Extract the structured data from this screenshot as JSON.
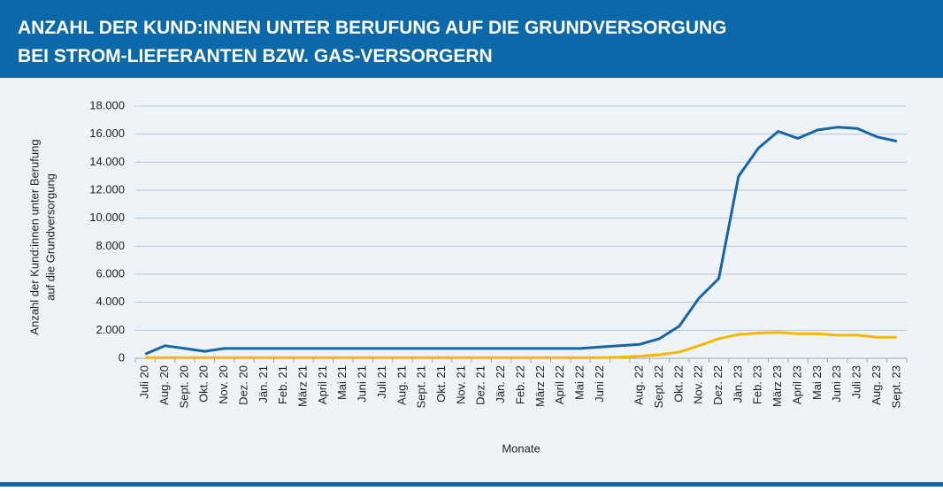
{
  "chart_data": {
    "type": "line",
    "title": [
      "ANZAHL DER KUND:INNEN UNTER BERUFUNG AUF DIE GRUNDVERSORGUNG",
      "BEI STROM-LIEFERANTEN BZW. GAS-VERSORGERN"
    ],
    "y_label": [
      "Anzahl der Kund:innen unter Berufung",
      "auf die Grundversorgung"
    ],
    "x_label": "Monate",
    "categories": [
      "Juli 20",
      "Aug. 20",
      "Sept. 20",
      "Okt. 20",
      "Nov. 20",
      "Dez. 20",
      "Jän. 21",
      "Feb. 21",
      "März 21",
      "April 21",
      "Mai 21",
      "Juni 21",
      "Juli 21",
      "Aug. 21",
      "Sept. 21",
      "Okt. 21",
      "Nov. 21",
      "Dez. 21",
      "Jän. 22",
      "Feb. 22",
      "März 22",
      "April 22",
      "Mai 22",
      "Juni 22",
      null,
      "Aug. 22",
      "Sept. 22",
      "Okt. 22",
      "Nov. 22",
      "Dez. 22",
      "Jän. 23",
      "Feb. 23",
      "März 23",
      "April 23",
      "Mai 23",
      "Juni 23",
      "Juli 23",
      "Aug. 23",
      "Sept. 23"
    ],
    "series": [
      {
        "color": "#1565a7",
        "values": [
          300,
          900,
          700,
          500,
          700,
          700,
          700,
          700,
          700,
          700,
          700,
          700,
          700,
          700,
          700,
          700,
          700,
          700,
          700,
          700,
          700,
          700,
          700,
          800,
          900,
          1000,
          1400,
          2300,
          4300,
          5700,
          13000,
          15000,
          16200,
          15700,
          16300,
          16500,
          16400,
          15800,
          15500
        ]
      },
      {
        "color": "#f5b800",
        "values": [
          50,
          50,
          50,
          50,
          50,
          50,
          50,
          50,
          50,
          50,
          50,
          50,
          50,
          50,
          50,
          50,
          50,
          50,
          50,
          50,
          50,
          50,
          50,
          50,
          80,
          150,
          250,
          450,
          900,
          1400,
          1700,
          1800,
          1850,
          1750,
          1750,
          1650,
          1650,
          1500,
          1500
        ]
      }
    ],
    "ylim": [
      0,
      18000
    ],
    "yticks": [
      0,
      {
        "value": 2000,
        "label": "2.000"
      },
      {
        "value": 4000,
        "label": "4.000"
      },
      {
        "value": 6000,
        "label": "6.000"
      },
      {
        "value": 8000,
        "label": "8.000"
      },
      {
        "value": 10000,
        "label": "10.000"
      },
      {
        "value": 12000,
        "label": "12.000"
      },
      {
        "value": 14000,
        "label": "14.000"
      },
      {
        "value": 16000,
        "label": "16.000"
      },
      {
        "value": 18000,
        "label": "18.000"
      }
    ],
    "grid": true
  }
}
